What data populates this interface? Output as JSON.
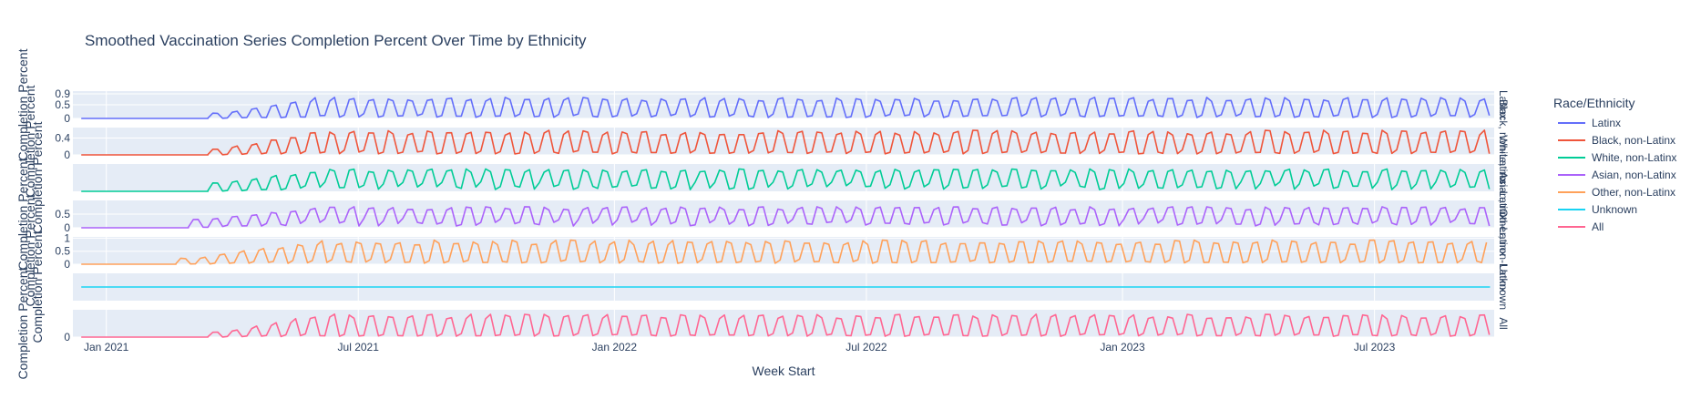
{
  "chart_data": {
    "type": "line",
    "title": "Smoothed Vaccination Series Completion Percent Over Time by Ethnicity",
    "xlabel": "Week Start",
    "ylabel": "Completion Percent",
    "x_range": [
      "2020-12-08",
      "2023-09-25"
    ],
    "x_ticks": [
      {
        "date": "2021-01-01",
        "label": "Jan 2021"
      },
      {
        "date": "2021-07-01",
        "label": "Jul 2021"
      },
      {
        "date": "2022-01-01",
        "label": "Jan 2022"
      },
      {
        "date": "2022-07-01",
        "label": "Jul 2022"
      },
      {
        "date": "2023-01-01",
        "label": "Jan 2023"
      },
      {
        "date": "2023-07-01",
        "label": "Jul 2023"
      }
    ],
    "legend": {
      "title": "Race/Ethnicity",
      "placement": "right"
    },
    "grid": true,
    "series": [
      {
        "name": "Latinx",
        "facet_label": "Latinx",
        "color": "#636efa",
        "ylim": [
          0,
          1.0
        ],
        "yticks": [
          {
            "v": 0,
            "label": "0"
          },
          {
            "v": 0.5,
            "label": "0.5"
          },
          {
            "v": 0.9,
            "label": "0.9"
          }
        ],
        "base": 0.18,
        "amp": 0.62,
        "start": "2021-03-15"
      },
      {
        "name": "Black, non-Latinx",
        "facet_label": "Black, non-Latinx",
        "color": "#ef553b",
        "ylim": [
          0,
          0.65
        ],
        "yticks": [
          {
            "v": 0,
            "label": "0"
          },
          {
            "v": 0.4,
            "label": "0.4"
          }
        ],
        "base": 0.12,
        "amp": 0.48,
        "start": "2021-03-15"
      },
      {
        "name": "White, non-Latinx",
        "facet_label": "White, non-Latinx",
        "color": "#00cc96",
        "ylim": [
          0,
          1.0
        ],
        "yticks": [],
        "base": 0.35,
        "amp": 0.55,
        "start": "2021-03-15"
      },
      {
        "name": "Asian, non-Latinx",
        "facet_label": "Asian, non-Latinx",
        "color": "#ab63fa",
        "ylim": [
          0,
          1.0
        ],
        "yticks": [
          {
            "v": 0,
            "label": "0"
          },
          {
            "v": 0.5,
            "label": "0.5"
          }
        ],
        "base": 0.35,
        "amp": 0.5,
        "start": "2021-03-01"
      },
      {
        "name": "Other, non-Latinx",
        "facet_label": "Other, non-Latinx",
        "color": "#ffa15a",
        "ylim": [
          0,
          1.05
        ],
        "yticks": [
          {
            "v": 0,
            "label": "0"
          },
          {
            "v": 0.5,
            "label": "0.5"
          },
          {
            "v": 1,
            "label": "1"
          }
        ],
        "base": 0.2,
        "amp": 0.75,
        "start": "2021-02-20"
      },
      {
        "name": "Unknown",
        "facet_label": "Unknown",
        "color": "#19d3f3",
        "ylim": [
          -1,
          1
        ],
        "yticks": [],
        "flat": 0,
        "start": "2020-12-14"
      },
      {
        "name": "All",
        "facet_label": "All",
        "color": "#ff6692",
        "ylim": [
          0,
          1.0
        ],
        "yticks": [
          {
            "v": 0,
            "label": "0"
          }
        ],
        "base": 0.15,
        "amp": 0.7,
        "start": "2021-03-15"
      }
    ]
  }
}
